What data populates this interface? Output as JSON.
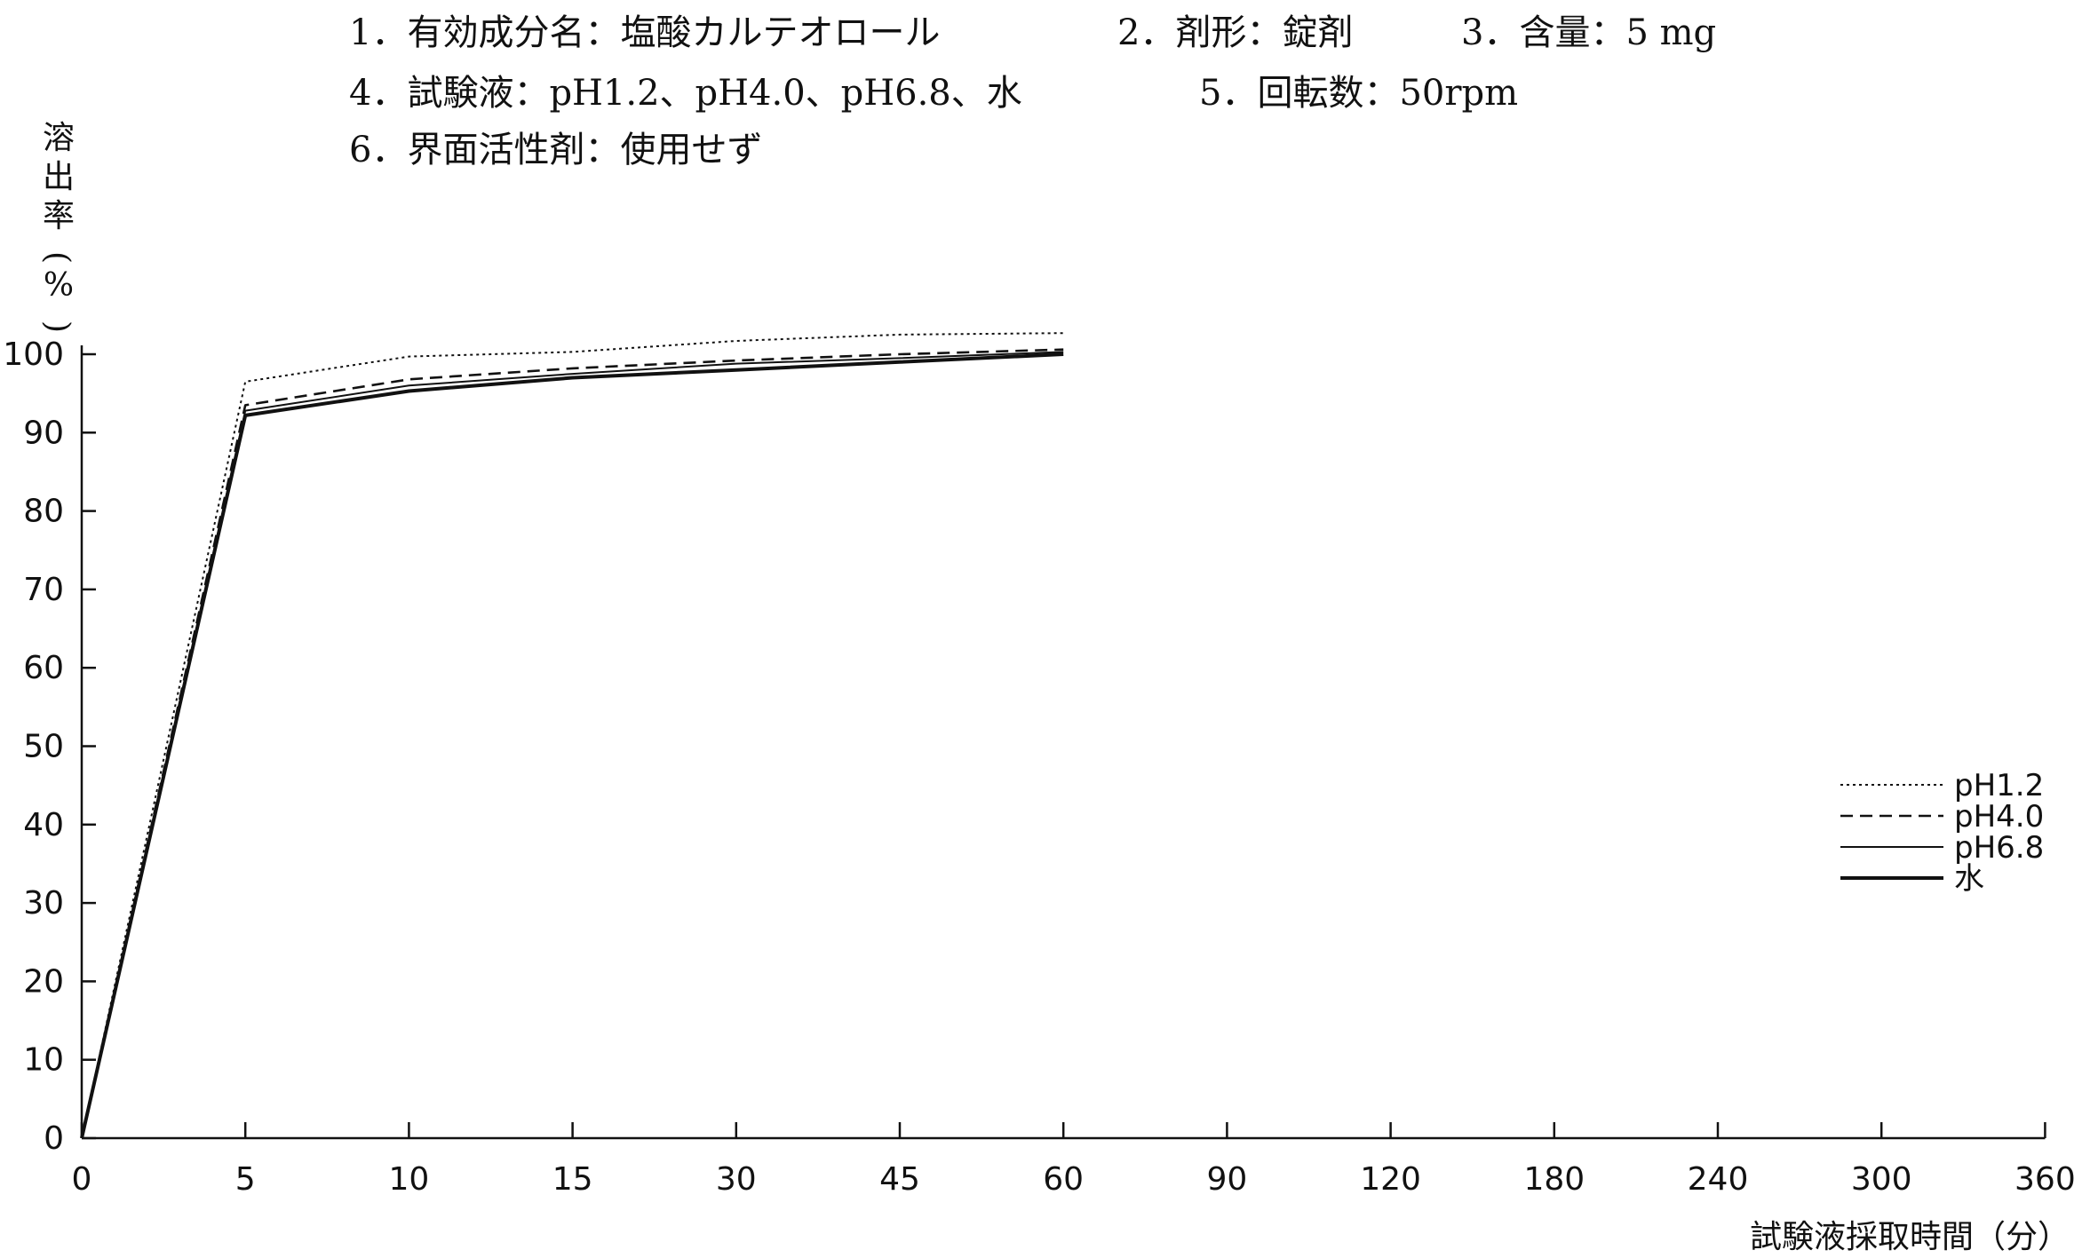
{
  "conditions": [
    [
      "1．有効成分名：塩酸カルテオロール",
      "2．剤形：錠剤",
      "3．含量：5 mg"
    ],
    [
      "4．試験液：pH1.2、pH4.0、pH6.8、水",
      "5．回転数：50rpm"
    ],
    [
      "6．界面活性剤：使用せず"
    ]
  ],
  "chart_data": {
    "type": "line",
    "title": "",
    "xlabel": "試験液採取時間（分）",
    "ylabel": "溶出率（%）",
    "ylim": [
      0,
      100
    ],
    "x_scale": "categorical",
    "x": [
      0,
      5,
      10,
      15,
      30,
      45,
      60,
      90,
      120,
      180,
      240,
      300,
      360
    ],
    "x_tick_labels": [
      "0",
      "5",
      "10",
      "15",
      "30",
      "45",
      "60",
      "90",
      "120",
      "180",
      "240",
      "300",
      "360"
    ],
    "y_ticks": [
      0,
      10,
      20,
      30,
      40,
      50,
      60,
      70,
      80,
      90,
      100
    ],
    "grid": false,
    "legend_position": "right",
    "series": [
      {
        "name": "pH1.2",
        "style": "dotted",
        "x": [
          0,
          5,
          10,
          15,
          30,
          45,
          60
        ],
        "values": [
          0,
          96.5,
          99.7,
          100.3,
          101.7,
          102.5,
          102.7
        ]
      },
      {
        "name": "pH4.0",
        "style": "dashed",
        "x": [
          0,
          5,
          10,
          15,
          30,
          45,
          60
        ],
        "values": [
          0,
          93.5,
          96.8,
          98.2,
          99.2,
          100.0,
          100.6
        ]
      },
      {
        "name": "pH6.8",
        "style": "solid",
        "x": [
          0,
          5,
          10,
          15,
          30,
          45,
          60
        ],
        "values": [
          0,
          92.8,
          96.0,
          97.5,
          98.8,
          99.5,
          100.3
        ]
      },
      {
        "name": "水",
        "style": "thick",
        "x": [
          0,
          5,
          10,
          15,
          30,
          45,
          60
        ],
        "values": [
          0,
          92.2,
          95.3,
          97.0,
          98.0,
          99.0,
          100.0
        ]
      }
    ]
  }
}
